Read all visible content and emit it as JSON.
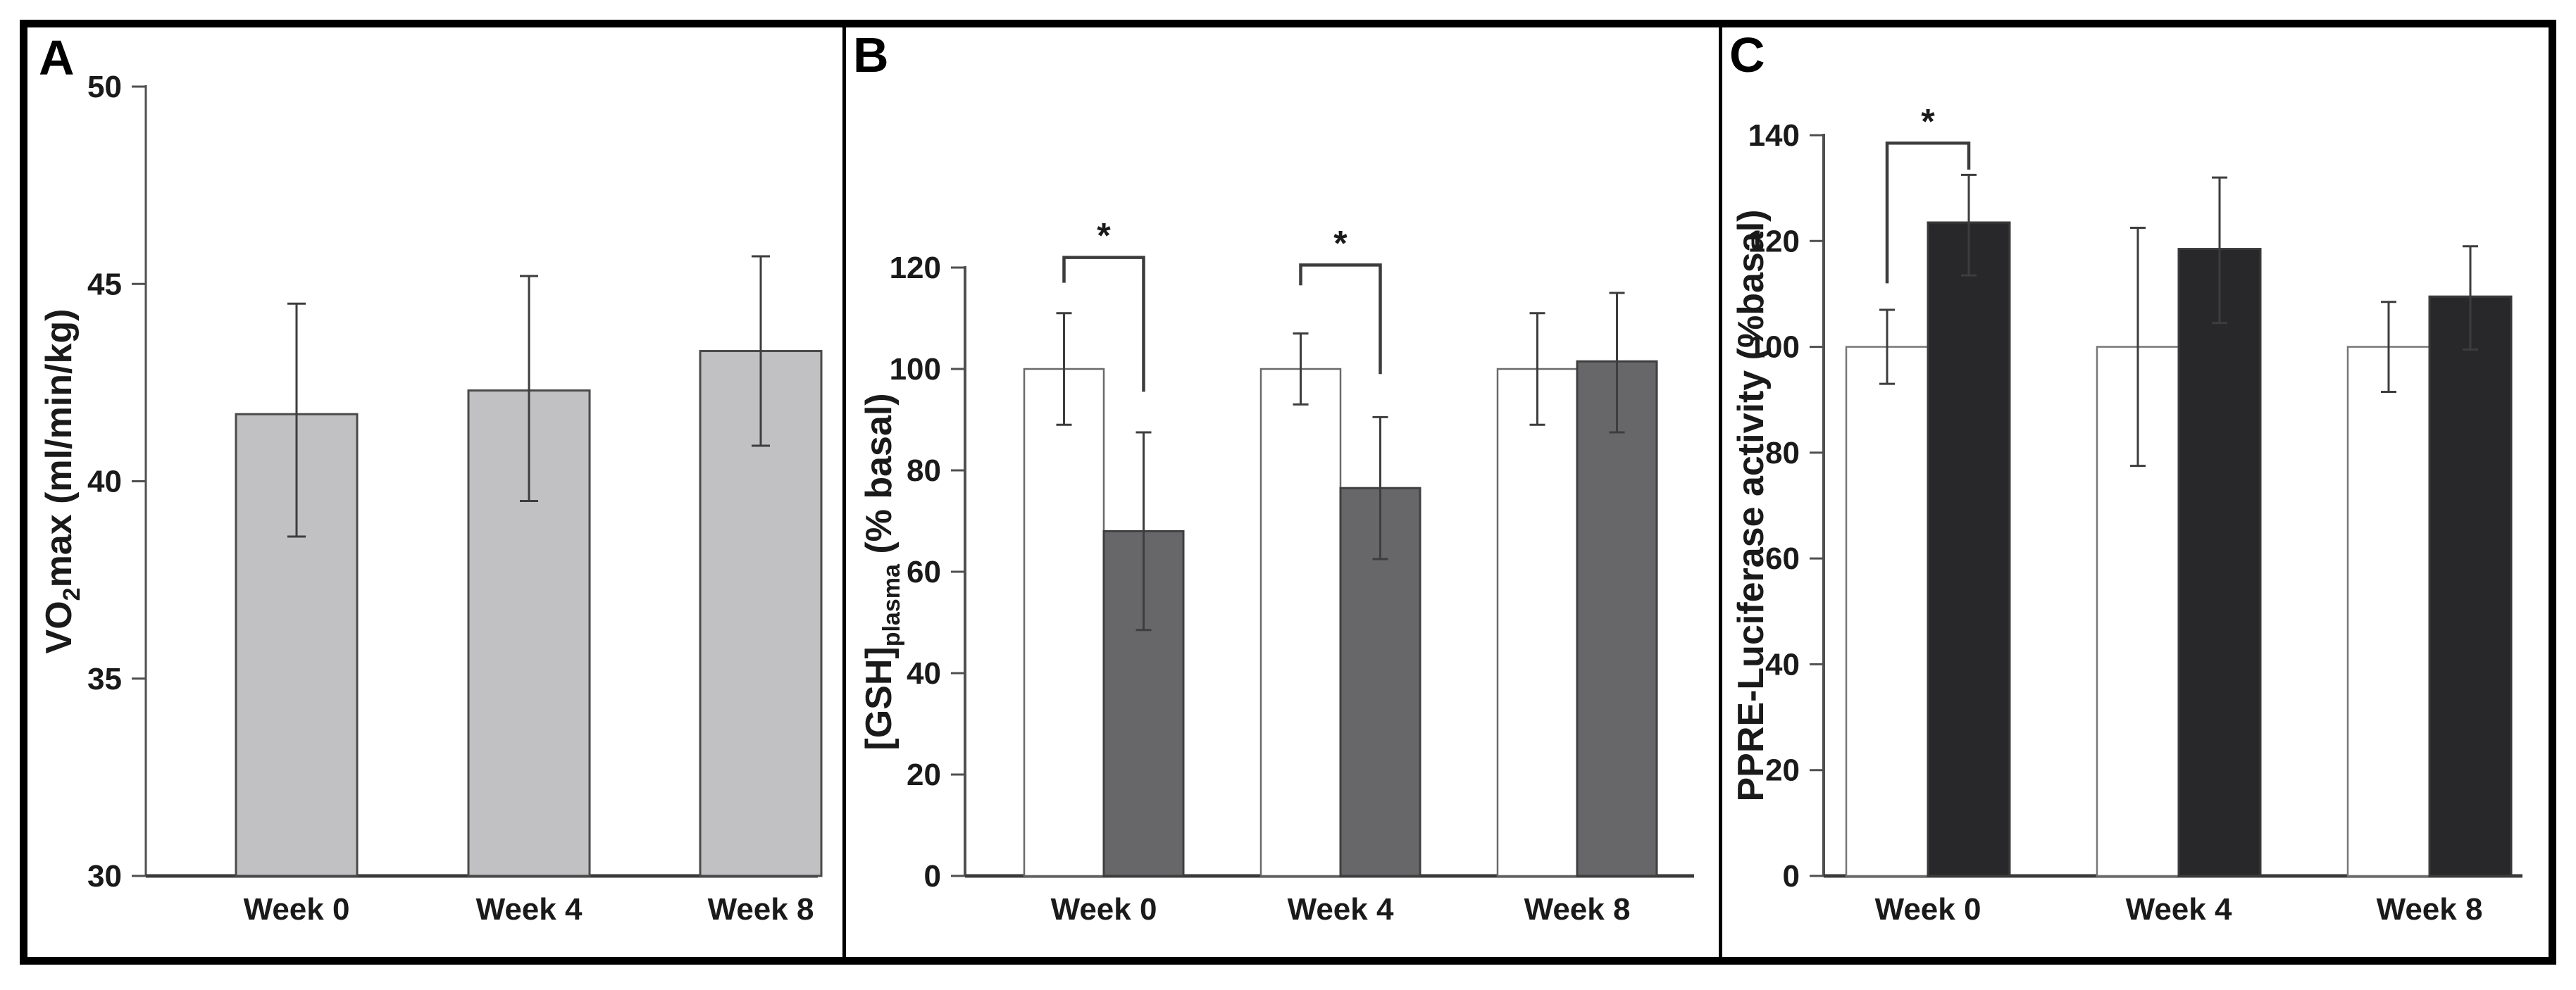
{
  "figure_title": "",
  "accent_colors": {
    "panel_a_bar": "#c1c1c3",
    "panel_b_white_bar": "#ffffff",
    "panel_b_gray_bar": "#67676a",
    "panel_c_black_bar": "#28282a",
    "axis": "#4a4a4a",
    "border": "#000000"
  },
  "chart_data": [
    {
      "type": "bar",
      "letter": "A",
      "ylabel_pre": "VO",
      "ylabel_sub": "2",
      "ylabel_post": "max (ml/min/kg)",
      "ylabel_full": "VO2max (ml/min/kg)",
      "ylim": [
        30,
        50
      ],
      "yticks": [
        30,
        35,
        40,
        45,
        50
      ],
      "categories": [
        "Week 0",
        "Week 4",
        "Week 8"
      ],
      "grid": false,
      "legend": "none",
      "series": [
        {
          "name": "gray-bars",
          "fill": "#c1c1c3",
          "stroke": "#4a4a4a",
          "values": [
            41.7,
            42.3,
            43.3
          ],
          "err_lo": [
            38.6,
            39.5,
            40.9
          ],
          "err_hi": [
            44.5,
            45.2,
            45.7
          ]
        }
      ],
      "brackets": []
    },
    {
      "type": "bar",
      "letter": "B",
      "ylabel_pre": "[GSH]",
      "ylabel_sub": "plasma",
      "ylabel_post": " (% basal)",
      "ylabel_full": "[GSH]plasma (% basal)",
      "ylim": [
        0,
        120
      ],
      "yticks": [
        0,
        20,
        40,
        60,
        80,
        100,
        120
      ],
      "categories": [
        "Week 0",
        "Week 4",
        "Week 8"
      ],
      "grid": false,
      "legend": "none",
      "series": [
        {
          "name": "white-bars",
          "fill": "#ffffff",
          "stroke": "#6a6a6a",
          "values": [
            100,
            100,
            100
          ],
          "err_lo": [
            89,
            93,
            89
          ],
          "err_hi": [
            111,
            107,
            111
          ]
        },
        {
          "name": "gray-bars",
          "fill": "#67676a",
          "stroke": "#3f3f3f",
          "values": [
            68,
            76.5,
            101.5
          ],
          "err_lo": [
            48.5,
            62.5,
            87.5
          ],
          "err_hi": [
            87.5,
            90.5,
            115
          ]
        }
      ],
      "brackets": [
        {
          "group": 0,
          "label": "*",
          "y_top": 122,
          "left_drop": 117,
          "right_drop": 95.5
        },
        {
          "group": 1,
          "label": "*",
          "y_top": 120.5,
          "left_drop": 116.5,
          "right_drop": 99
        }
      ]
    },
    {
      "type": "bar",
      "letter": "C",
      "ylabel_pre": "",
      "ylabel_sub": "",
      "ylabel_post": "PPRE-Luciferase activity (%basal)",
      "ylabel_full": "PPRE-Luciferase activity (%basal)",
      "ylim": [
        0,
        140
      ],
      "yticks": [
        0,
        20,
        40,
        60,
        80,
        100,
        120,
        140
      ],
      "categories": [
        "Week 0",
        "Week 4",
        "Week 8"
      ],
      "grid": false,
      "legend": "none",
      "series": [
        {
          "name": "white-bars",
          "fill": "#ffffff",
          "stroke": "#777777",
          "values": [
            100,
            100,
            100
          ],
          "err_lo": [
            93,
            77.5,
            91.5
          ],
          "err_hi": [
            107,
            122.5,
            108.5
          ]
        },
        {
          "name": "black-bars",
          "fill": "#28282a",
          "stroke": "#3a3a3a",
          "values": [
            123.5,
            118.5,
            109.5
          ],
          "err_lo": [
            113.5,
            104.5,
            99.5
          ],
          "err_hi": [
            132.5,
            132,
            119
          ]
        }
      ],
      "brackets": [
        {
          "group": 0,
          "label": "*",
          "y_top": 138.5,
          "left_drop": 112,
          "right_drop": 133.5
        }
      ]
    }
  ]
}
